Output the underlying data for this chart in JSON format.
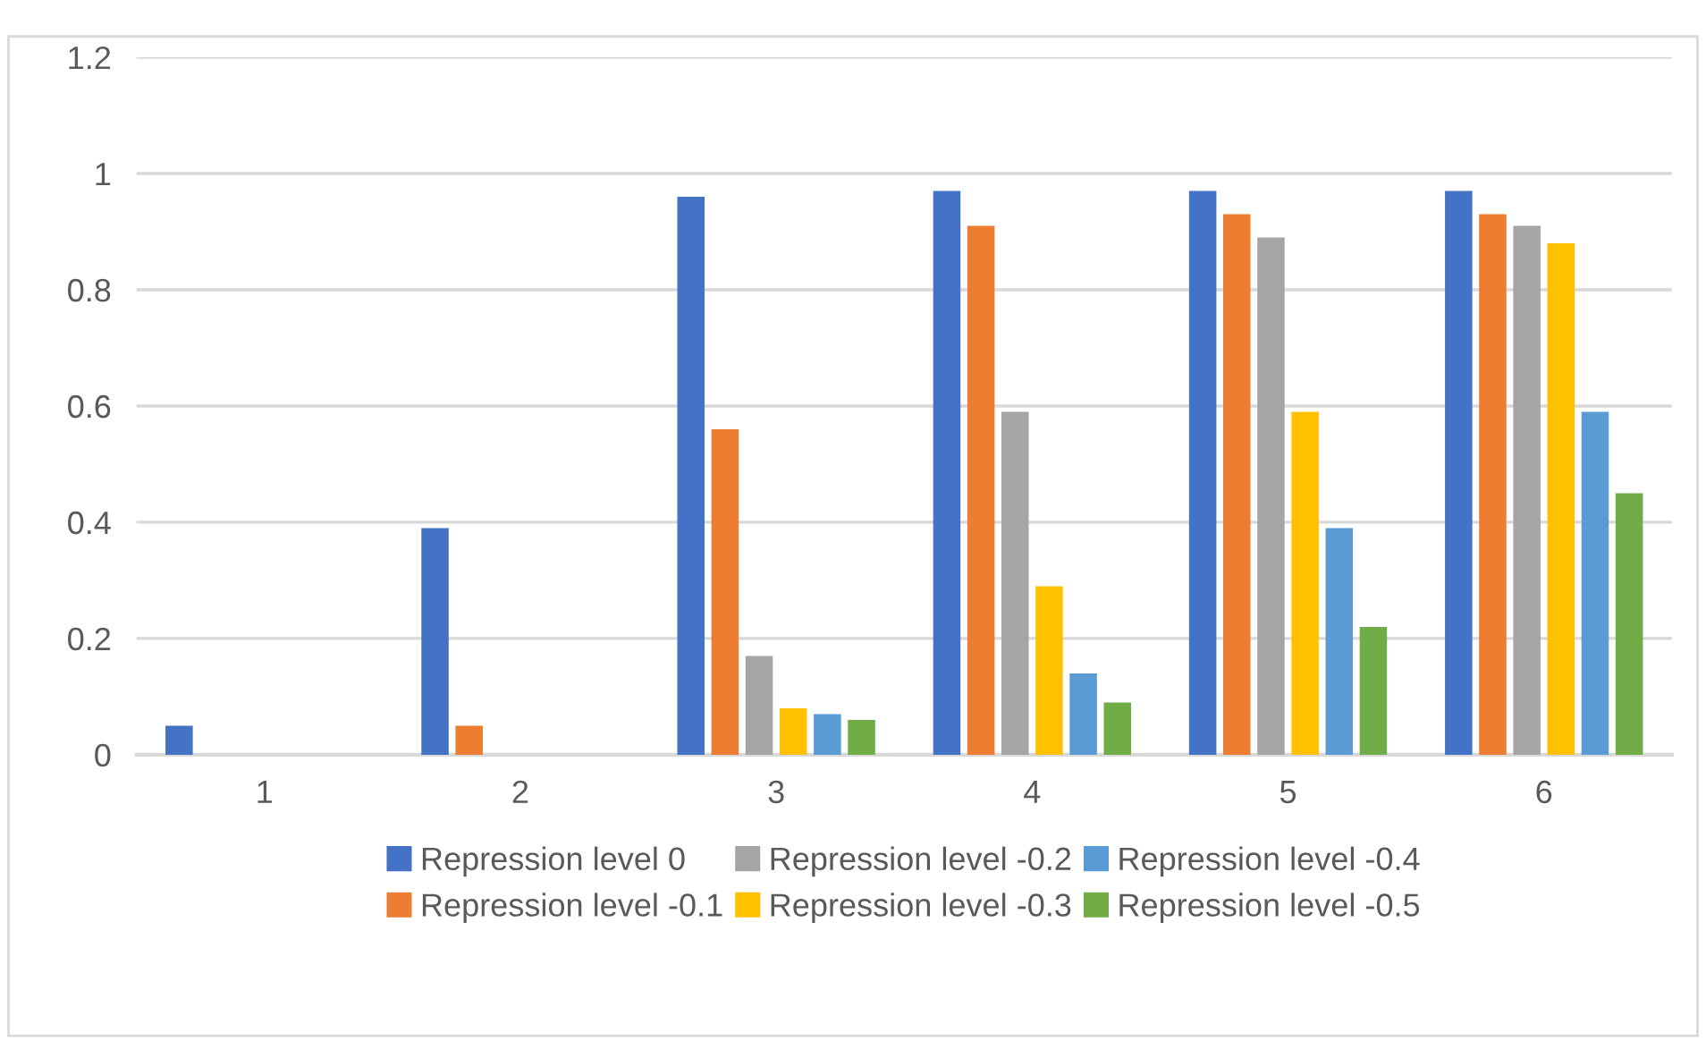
{
  "chart_data": {
    "type": "bar",
    "categories": [
      "1",
      "2",
      "3",
      "4",
      "5",
      "6"
    ],
    "series": [
      {
        "name": "Repression level 0",
        "color": "#4472c4",
        "values": [
          0.05,
          0.39,
          0.96,
          0.97,
          0.97,
          0.97
        ]
      },
      {
        "name": "Repression level -0.1",
        "color": "#ed7d31",
        "values": [
          0,
          0.05,
          0.56,
          0.91,
          0.93,
          0.93
        ]
      },
      {
        "name": "Repression level -0.2",
        "color": "#a5a5a5",
        "values": [
          0,
          0,
          0.17,
          0.59,
          0.89,
          0.91
        ]
      },
      {
        "name": "Repression level -0.3",
        "color": "#ffc000",
        "values": [
          0,
          0,
          0.08,
          0.29,
          0.59,
          0.88
        ]
      },
      {
        "name": "Repression level -0.4",
        "color": "#5b9bd5",
        "values": [
          0,
          0,
          0.07,
          0.14,
          0.39,
          0.59
        ]
      },
      {
        "name": "Repression level -0.5",
        "color": "#70ad47",
        "values": [
          0,
          0,
          0.06,
          0.09,
          0.22,
          0.45
        ]
      }
    ],
    "ylim": [
      0,
      1.2
    ],
    "yticks": [
      0,
      0.2,
      0.4,
      0.6,
      0.8,
      1,
      1.2
    ],
    "grid": "y",
    "legend": "bottom"
  }
}
